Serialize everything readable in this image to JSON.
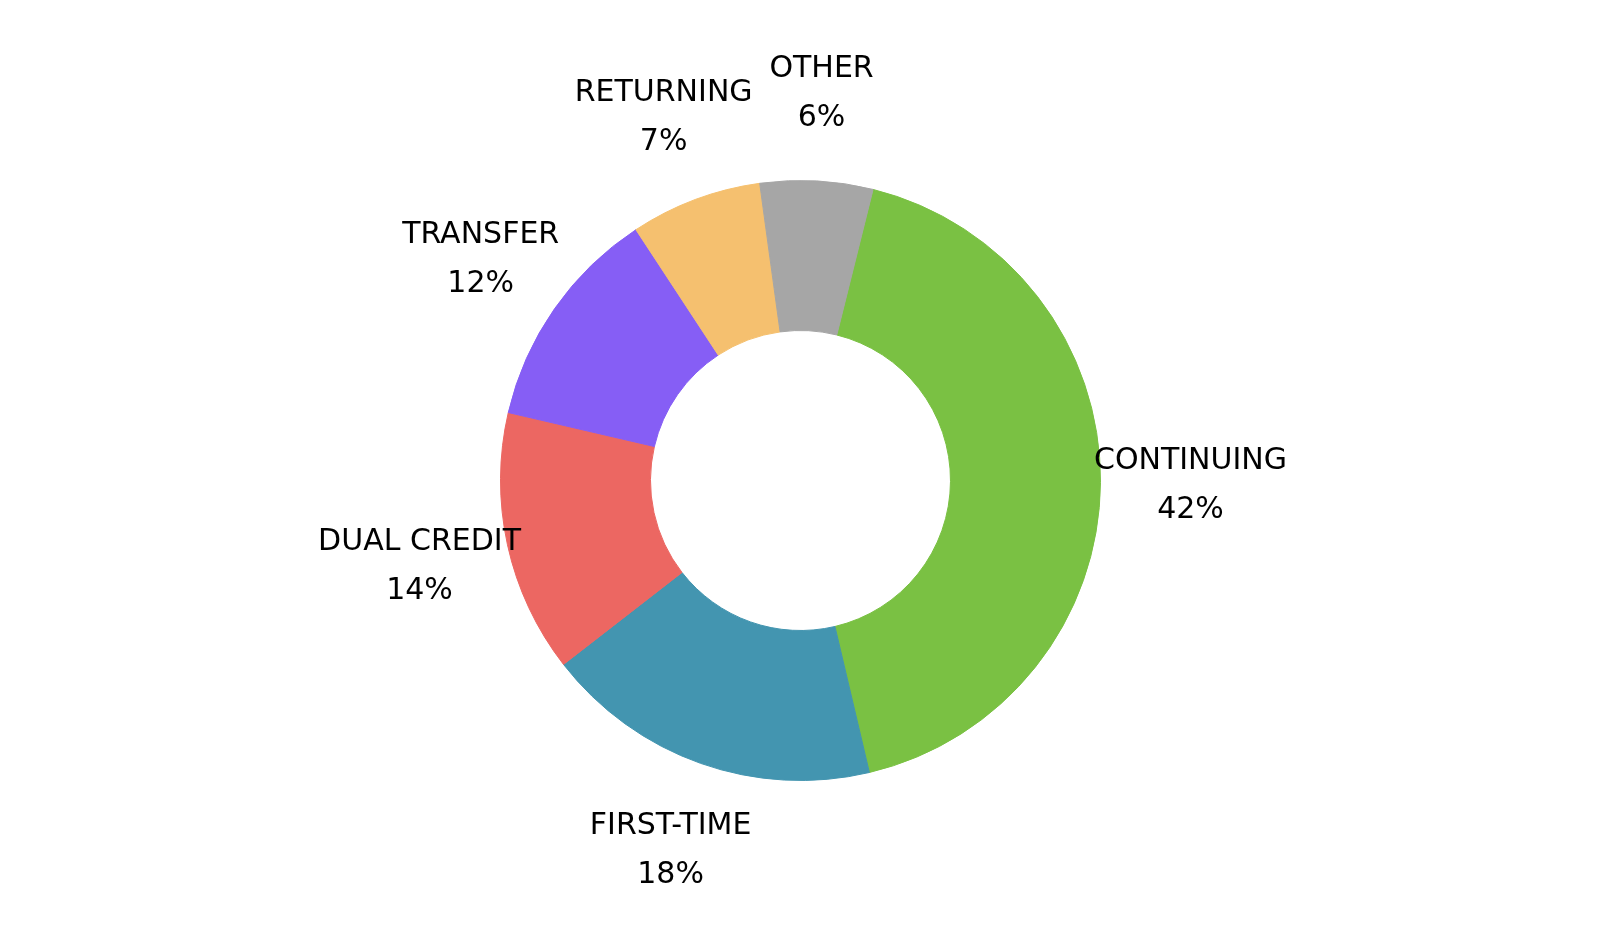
{
  "chart_data": {
    "type": "donut",
    "categories": [
      "CONTINUING",
      "FIRST-TIME",
      "DUAL CREDIT",
      "TRANSFER",
      "RETURNING",
      "OTHER"
    ],
    "values": [
      42,
      18,
      14,
      12,
      7,
      6
    ],
    "value_labels": [
      "42%",
      "18%",
      "14%",
      "12%",
      "7%",
      "6%"
    ],
    "colors": [
      "#7ac143",
      "#4395b0",
      "#ec6762",
      "#865ef5",
      "#f5c06f",
      "#a6a6a6"
    ],
    "legend": false
  }
}
